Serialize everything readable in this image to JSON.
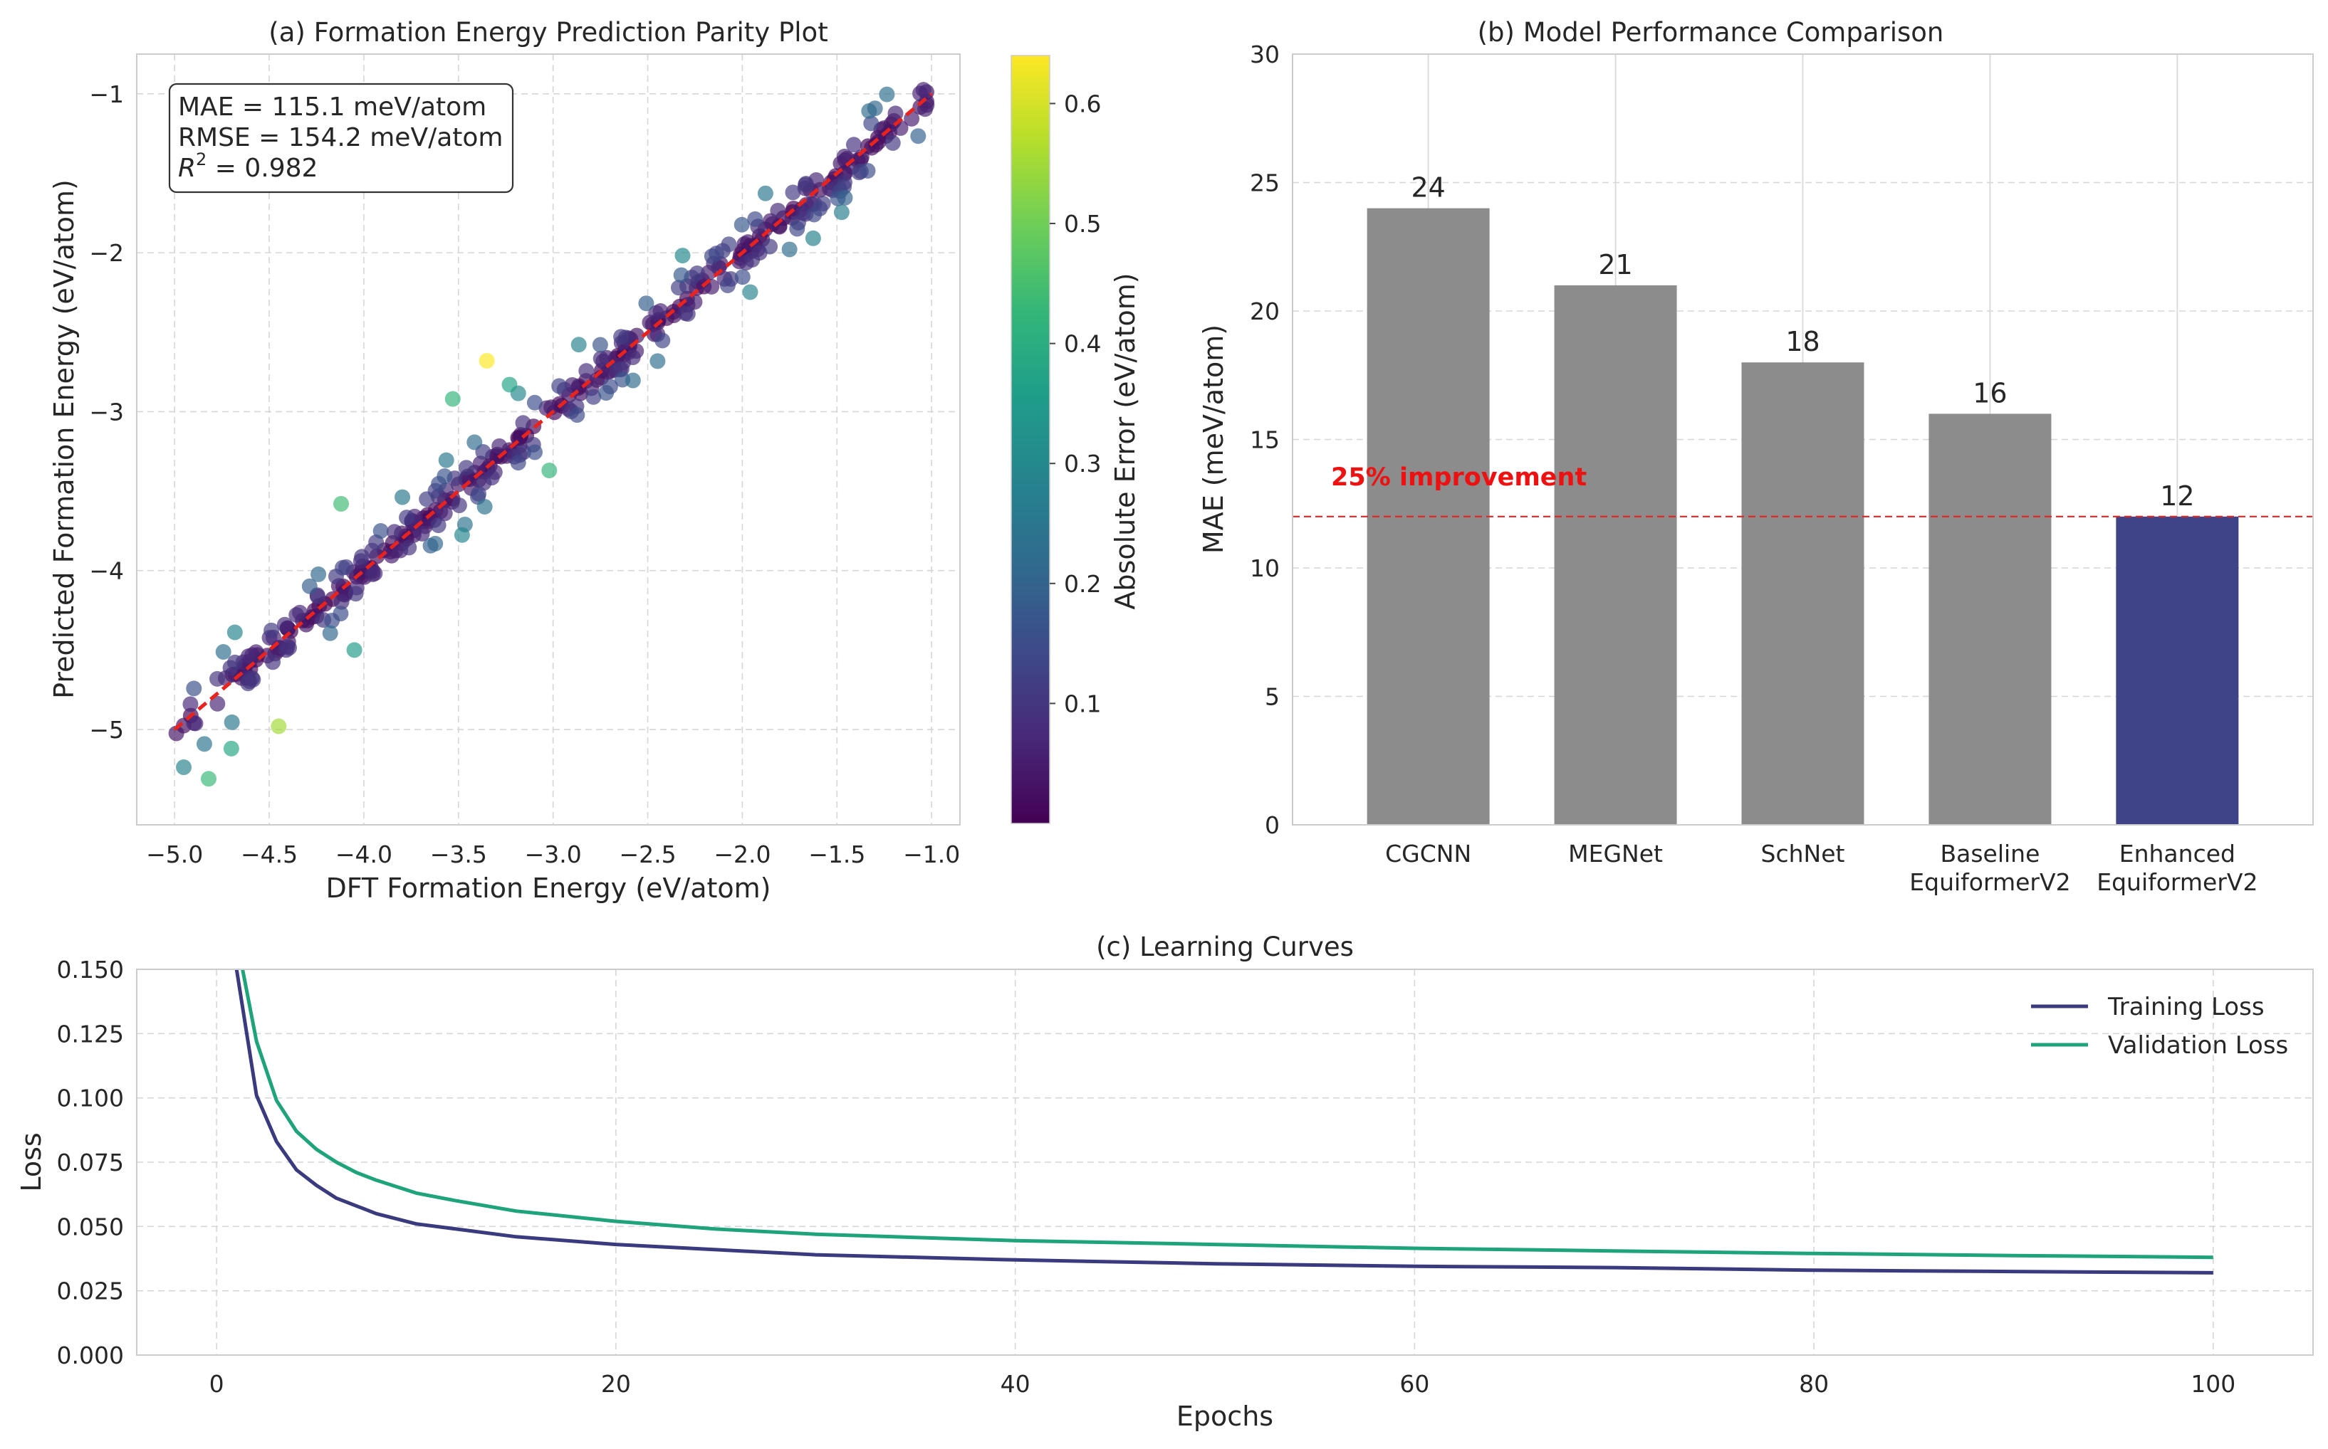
{
  "chart_data": [
    {
      "id": "parity",
      "type": "scatter",
      "title": "(a) Formation Energy Prediction Parity Plot",
      "xlabel": "DFT Formation Energy (eV/atom)",
      "ylabel": "Predicted Formation Energy (eV/atom)",
      "xlim": [
        -5.2,
        -0.85
      ],
      "ylim": [
        -5.6,
        -0.75
      ],
      "xticks": [
        -5.0,
        -4.5,
        -4.0,
        -3.5,
        -3.0,
        -2.5,
        -2.0,
        -1.5,
        -1.0
      ],
      "xtick_labels": [
        "−5.0",
        "−4.5",
        "−4.0",
        "−3.5",
        "−3.0",
        "−2.5",
        "−2.0",
        "−1.5",
        "−1.0"
      ],
      "yticks": [
        -5,
        -4,
        -3,
        -2,
        -1
      ],
      "ytick_labels": [
        "−5",
        "−4",
        "−3",
        "−2",
        "−1"
      ],
      "reference_line": {
        "from": [
          -5.0,
          -5.0
        ],
        "to": [
          -1.0,
          -1.0
        ],
        "color": "#e8231e",
        "style": "dashed"
      },
      "stats_box": {
        "mae": "MAE = 115.1 meV/atom",
        "rmse": "RMSE = 154.2 meV/atom",
        "r2_symbol": "R",
        "r2_exp": "2",
        "r2_value": " = 0.982"
      },
      "colorbar": {
        "label": "Absolute Error (eV/atom)",
        "range": [
          0.0,
          0.64
        ],
        "ticks": [
          0.1,
          0.2,
          0.3,
          0.4,
          0.5,
          0.6
        ],
        "tick_labels": [
          "0.1",
          "0.2",
          "0.3",
          "0.4",
          "0.5",
          "0.6"
        ],
        "colormap": [
          "#440154",
          "#482878",
          "#3e4989",
          "#31688e",
          "#26828e",
          "#1f9e89",
          "#35b779",
          "#6ece58",
          "#b5de2b",
          "#fde725"
        ]
      },
      "highlighted_outliers": [
        {
          "x": -3.35,
          "y": -2.68,
          "err": 0.64
        },
        {
          "x": -4.45,
          "y": -4.98,
          "err": 0.55
        },
        {
          "x": -3.02,
          "y": -3.37,
          "err": 0.42
        },
        {
          "x": -4.12,
          "y": -3.58,
          "err": 0.44
        },
        {
          "x": -4.82,
          "y": -5.31,
          "err": 0.43
        },
        {
          "x": -3.53,
          "y": -2.92,
          "err": 0.42
        },
        {
          "x": -4.7,
          "y": -5.12,
          "err": 0.38
        },
        {
          "x": -3.23,
          "y": -2.83,
          "err": 0.37
        },
        {
          "x": -4.05,
          "y": -4.5,
          "err": 0.35
        }
      ],
      "scatter_points": 400,
      "scatter_noise_sd_eV": 0.14
    },
    {
      "id": "mae_bars",
      "type": "bar",
      "title": "(b) Model Performance Comparison",
      "ylabel": "MAE (meV/atom)",
      "ylim": [
        0,
        30
      ],
      "yticks": [
        0,
        5,
        10,
        15,
        20,
        25,
        30
      ],
      "ytick_labels": [
        "0",
        "5",
        "10",
        "15",
        "20",
        "25",
        "30"
      ],
      "categories": [
        {
          "line1": "CGCNN",
          "line2": ""
        },
        {
          "line1": "MEGNet",
          "line2": ""
        },
        {
          "line1": "SchNet",
          "line2": ""
        },
        {
          "line1": "Baseline",
          "line2": "EquiformerV2"
        },
        {
          "line1": "Enhanced",
          "line2": "EquiformerV2"
        }
      ],
      "values": [
        24,
        21,
        18,
        16,
        12
      ],
      "value_labels": [
        "24",
        "21",
        "18",
        "16",
        "12"
      ],
      "colors": [
        "#8c8c8c",
        "#8c8c8c",
        "#8c8c8c",
        "#8c8c8c",
        "#3f4488"
      ],
      "reference_line": {
        "y": 12,
        "color": "#e8231e",
        "style": "dashed"
      },
      "annotation": "25% improvement"
    },
    {
      "id": "learning",
      "type": "line",
      "title": "(c) Learning Curves",
      "xlabel": "Epochs",
      "ylabel": "Loss",
      "xlim": [
        -4,
        105
      ],
      "ylim": [
        0,
        0.15
      ],
      "xticks": [
        0,
        20,
        40,
        60,
        80,
        100
      ],
      "xtick_labels": [
        "0",
        "20",
        "40",
        "60",
        "80",
        "100"
      ],
      "yticks": [
        0.0,
        0.025,
        0.05,
        0.075,
        0.1,
        0.125,
        0.15
      ],
      "ytick_labels": [
        "0.000",
        "0.025",
        "0.050",
        "0.075",
        "0.100",
        "0.125",
        "0.150"
      ],
      "legend_position": "top-right",
      "series": [
        {
          "name": "Training Loss",
          "color": "#3a3a7e",
          "points": [
            [
              1,
              0.15
            ],
            [
              2,
              0.101
            ],
            [
              3,
              0.083
            ],
            [
              4,
              0.072
            ],
            [
              5,
              0.066
            ],
            [
              6,
              0.061
            ],
            [
              7,
              0.058
            ],
            [
              8,
              0.055
            ],
            [
              10,
              0.051
            ],
            [
              12,
              0.049
            ],
            [
              15,
              0.046
            ],
            [
              20,
              0.043
            ],
            [
              25,
              0.041
            ],
            [
              30,
              0.039
            ],
            [
              40,
              0.037
            ],
            [
              50,
              0.0355
            ],
            [
              60,
              0.0345
            ],
            [
              70,
              0.034
            ],
            [
              80,
              0.033
            ],
            [
              90,
              0.0325
            ],
            [
              100,
              0.032
            ]
          ]
        },
        {
          "name": "Validation Loss",
          "color": "#1fa37a",
          "points": [
            [
              1.3,
              0.15
            ],
            [
              2,
              0.122
            ],
            [
              3,
              0.099
            ],
            [
              4,
              0.087
            ],
            [
              5,
              0.08
            ],
            [
              6,
              0.075
            ],
            [
              7,
              0.071
            ],
            [
              8,
              0.068
            ],
            [
              10,
              0.063
            ],
            [
              12,
              0.06
            ],
            [
              15,
              0.056
            ],
            [
              20,
              0.052
            ],
            [
              25,
              0.049
            ],
            [
              30,
              0.047
            ],
            [
              40,
              0.0445
            ],
            [
              50,
              0.043
            ],
            [
              60,
              0.0415
            ],
            [
              70,
              0.0405
            ],
            [
              80,
              0.0395
            ],
            [
              90,
              0.0387
            ],
            [
              100,
              0.038
            ]
          ]
        }
      ]
    }
  ]
}
